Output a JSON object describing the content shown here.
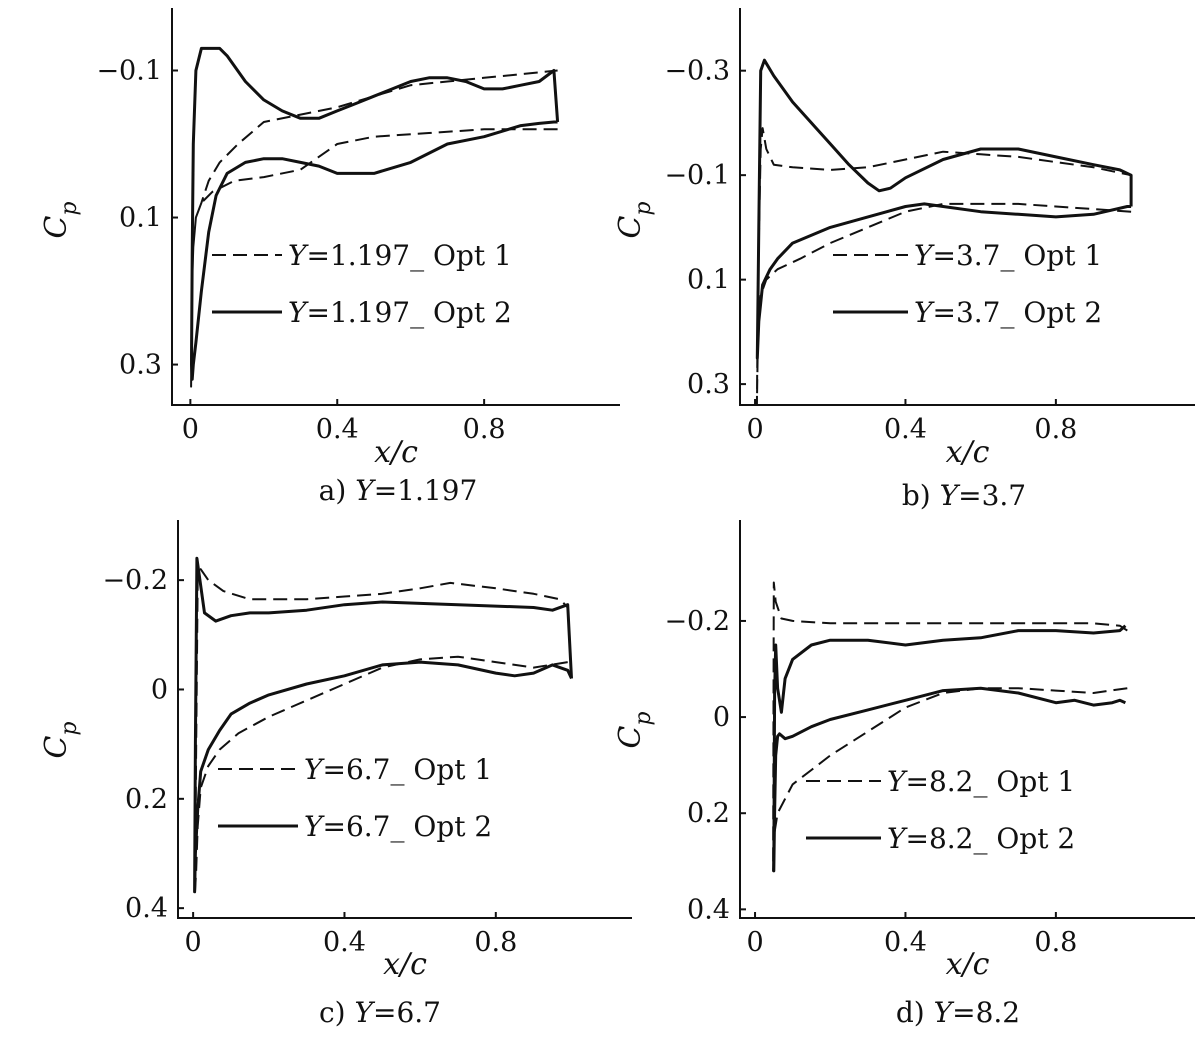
{
  "figure": {
    "legend_line_styles": [
      "dashed",
      "solid"
    ],
    "line_color": "#111111"
  },
  "chart_data": [
    {
      "type": "line",
      "caption": "a)  Y=1.197",
      "xlabel": "x/c",
      "ylabel": "Cp",
      "xlim": [
        -0.05,
        1.17
      ],
      "ylim": [
        0.355,
        -0.185
      ],
      "y_inverted": true,
      "xticks": [
        0,
        0.4,
        0.8
      ],
      "xtick_labels": [
        "0",
        "0.4",
        "0.8"
      ],
      "yticks": [
        -0.1,
        0.1,
        0.3
      ],
      "ytick_labels": [
        "−0.1",
        "0.1",
        "0.3"
      ],
      "legend_position": "center",
      "grid": false,
      "series": [
        {
          "name": "Y=1.197_ Opt 1",
          "style": "dashed",
          "x": [
            1.0,
            0.9,
            0.8,
            0.65,
            0.5,
            0.4,
            0.3,
            0.2,
            0.12,
            0.06,
            0.03,
            0.015,
            0.008,
            0.004,
            0.002,
            0.004,
            0.008,
            0.015,
            0.03,
            0.05,
            0.08,
            0.13,
            0.2,
            0.3,
            0.4,
            0.5,
            0.6,
            0.7,
            0.8,
            0.9,
            1.0
          ],
          "y": [
            -0.02,
            -0.02,
            -0.02,
            -0.015,
            -0.01,
            0.0,
            0.035,
            0.045,
            0.05,
            0.065,
            0.08,
            0.1,
            0.14,
            0.2,
            0.33,
            0.2,
            0.14,
            0.1,
            0.08,
            0.05,
            0.025,
            0.0,
            -0.03,
            -0.04,
            -0.05,
            -0.065,
            -0.08,
            -0.085,
            -0.09,
            -0.095,
            -0.1
          ]
        },
        {
          "name": "Y=1.197_ Opt 2",
          "style": "solid",
          "x": [
            1.0,
            0.99,
            0.95,
            0.9,
            0.8,
            0.7,
            0.6,
            0.5,
            0.4,
            0.35,
            0.3,
            0.25,
            0.2,
            0.15,
            0.1,
            0.07,
            0.05,
            0.03,
            0.015,
            0.008,
            0.005,
            0.003,
            0.005,
            0.008,
            0.015,
            0.03,
            0.06,
            0.08,
            0.1,
            0.15,
            0.2,
            0.25,
            0.3,
            0.35,
            0.4,
            0.45,
            0.5,
            0.55,
            0.6,
            0.65,
            0.7,
            0.75,
            0.8,
            0.85,
            0.9,
            0.95,
            0.99,
            1.0
          ],
          "y": [
            -0.03,
            -0.03,
            -0.028,
            -0.025,
            -0.01,
            0.0,
            0.025,
            0.04,
            0.04,
            0.03,
            0.025,
            0.02,
            0.02,
            0.025,
            0.04,
            0.07,
            0.12,
            0.2,
            0.27,
            0.3,
            0.32,
            0.3,
            0.15,
            0.0,
            -0.1,
            -0.13,
            -0.13,
            -0.13,
            -0.12,
            -0.085,
            -0.06,
            -0.045,
            -0.035,
            -0.035,
            -0.045,
            -0.055,
            -0.065,
            -0.075,
            -0.085,
            -0.09,
            -0.09,
            -0.085,
            -0.075,
            -0.075,
            -0.08,
            -0.085,
            -0.1,
            -0.03
          ]
        }
      ]
    },
    {
      "type": "line",
      "caption": "b)  Y=3.7",
      "xlabel": "x/c",
      "ylabel": "Cp",
      "xlim": [
        -0.04,
        1.17
      ],
      "ylim": [
        0.34,
        -0.42
      ],
      "y_inverted": true,
      "xticks": [
        0,
        0.4,
        0.8
      ],
      "xtick_labels": [
        "0",
        "0.4",
        "0.8"
      ],
      "yticks": [
        -0.3,
        -0.1,
        0.1,
        0.3
      ],
      "ytick_labels": [
        "−0.3",
        "−0.1",
        "0.1",
        "0.3"
      ],
      "legend_position": "center",
      "grid": false,
      "series": [
        {
          "name": "Y=3.7_ Opt 1",
          "style": "dashed",
          "x": [
            1.0,
            0.9,
            0.8,
            0.7,
            0.6,
            0.5,
            0.4,
            0.3,
            0.2,
            0.12,
            0.06,
            0.03,
            0.015,
            0.008,
            0.005,
            0.008,
            0.015,
            0.02,
            0.03,
            0.05,
            0.1,
            0.2,
            0.3,
            0.4,
            0.5,
            0.6,
            0.7,
            0.8,
            0.9,
            1.0
          ],
          "y": [
            -0.03,
            -0.035,
            -0.04,
            -0.045,
            -0.045,
            -0.045,
            -0.03,
            -0.0,
            0.03,
            0.06,
            0.08,
            0.1,
            0.13,
            0.2,
            0.34,
            0.1,
            -0.15,
            -0.19,
            -0.15,
            -0.12,
            -0.115,
            -0.11,
            -0.115,
            -0.13,
            -0.145,
            -0.14,
            -0.135,
            -0.125,
            -0.115,
            -0.1
          ]
        },
        {
          "name": "Y=3.7_ Opt 2",
          "style": "solid",
          "x": [
            1.0,
            0.99,
            0.9,
            0.8,
            0.7,
            0.6,
            0.5,
            0.45,
            0.4,
            0.3,
            0.2,
            0.1,
            0.06,
            0.04,
            0.02,
            0.01,
            0.006,
            0.01,
            0.015,
            0.025,
            0.05,
            0.1,
            0.15,
            0.2,
            0.25,
            0.3,
            0.33,
            0.36,
            0.4,
            0.5,
            0.6,
            0.7,
            0.8,
            0.9,
            0.97,
            1.0,
            1.0
          ],
          "y": [
            -0.04,
            -0.04,
            -0.025,
            -0.02,
            -0.025,
            -0.03,
            -0.04,
            -0.045,
            -0.04,
            -0.02,
            0.0,
            0.03,
            0.06,
            0.08,
            0.11,
            0.18,
            0.25,
            0.0,
            -0.3,
            -0.32,
            -0.29,
            -0.24,
            -0.2,
            -0.16,
            -0.12,
            -0.085,
            -0.07,
            -0.075,
            -0.095,
            -0.13,
            -0.15,
            -0.15,
            -0.135,
            -0.12,
            -0.11,
            -0.1,
            -0.04
          ]
        }
      ]
    },
    {
      "type": "line",
      "caption": "c)  Y=6.7",
      "xlabel": "x/c",
      "ylabel": "Cp",
      "xlim": [
        -0.04,
        1.16
      ],
      "ylim": [
        0.418,
        -0.31
      ],
      "y_inverted": true,
      "xticks": [
        0,
        0.4,
        0.8
      ],
      "xtick_labels": [
        "0",
        "0.4",
        "0.8"
      ],
      "yticks": [
        -0.2,
        0,
        0.2,
        0.4
      ],
      "ytick_labels": [
        "−0.2",
        "0",
        "0.2",
        "0.4"
      ],
      "legend_position": "center",
      "grid": false,
      "series": [
        {
          "name": "Y=6.7_ Opt 1",
          "style": "dashed",
          "x": [
            0.99,
            0.9,
            0.8,
            0.7,
            0.6,
            0.5,
            0.4,
            0.3,
            0.2,
            0.12,
            0.07,
            0.04,
            0.02,
            0.012,
            0.008,
            0.005,
            0.008,
            0.012,
            0.02,
            0.04,
            0.08,
            0.15,
            0.3,
            0.4,
            0.5,
            0.6,
            0.68,
            0.8,
            0.9,
            0.97,
            0.99
          ],
          "y": [
            -0.05,
            -0.04,
            -0.05,
            -0.06,
            -0.055,
            -0.04,
            -0.01,
            0.02,
            0.05,
            0.08,
            0.11,
            0.14,
            0.18,
            0.25,
            0.33,
            0.37,
            0.1,
            -0.2,
            -0.22,
            -0.2,
            -0.18,
            -0.165,
            -0.165,
            -0.17,
            -0.175,
            -0.185,
            -0.195,
            -0.185,
            -0.175,
            -0.165,
            -0.15
          ]
        },
        {
          "name": "Y=6.7_ Opt 2",
          "style": "solid",
          "x": [
            1.0,
            0.99,
            0.95,
            0.9,
            0.85,
            0.8,
            0.7,
            0.6,
            0.5,
            0.4,
            0.3,
            0.2,
            0.15,
            0.1,
            0.07,
            0.04,
            0.02,
            0.012,
            0.006,
            0.004,
            0.006,
            0.01,
            0.03,
            0.06,
            0.1,
            0.15,
            0.2,
            0.3,
            0.4,
            0.5,
            0.7,
            0.9,
            0.95,
            0.99,
            1.0
          ],
          "y": [
            -0.02,
            -0.035,
            -0.045,
            -0.03,
            -0.025,
            -0.03,
            -0.045,
            -0.05,
            -0.045,
            -0.025,
            -0.01,
            0.01,
            0.025,
            0.045,
            0.075,
            0.11,
            0.15,
            0.22,
            0.3,
            0.37,
            0.1,
            -0.24,
            -0.14,
            -0.125,
            -0.135,
            -0.14,
            -0.14,
            -0.145,
            -0.155,
            -0.16,
            -0.155,
            -0.15,
            -0.145,
            -0.155,
            -0.02
          ]
        }
      ]
    },
    {
      "type": "line",
      "caption": "d)  Y=8.2",
      "xlabel": "x/c",
      "ylabel": "Cp",
      "xlim": [
        -0.04,
        1.17
      ],
      "ylim": [
        0.418,
        -0.41
      ],
      "y_inverted": true,
      "xticks": [
        0,
        0.4,
        0.8
      ],
      "xtick_labels": [
        "0",
        "0.4",
        "0.8"
      ],
      "yticks": [
        -0.2,
        0,
        0.2,
        0.4
      ],
      "ytick_labels": [
        "−0.2",
        "0",
        "0.2",
        "0.4"
      ],
      "legend_position": "center",
      "grid": false,
      "series": [
        {
          "name": "Y=8.2_ Opt 1",
          "style": "dashed",
          "x": [
            0.99,
            0.9,
            0.8,
            0.7,
            0.6,
            0.5,
            0.4,
            0.3,
            0.2,
            0.15,
            0.1,
            0.08,
            0.06,
            0.05,
            0.048,
            0.05,
            0.055,
            0.07,
            0.1,
            0.2,
            0.4,
            0.6,
            0.8,
            0.9,
            0.97,
            0.99
          ],
          "y": [
            -0.06,
            -0.05,
            -0.055,
            -0.06,
            -0.06,
            -0.05,
            -0.02,
            0.03,
            0.08,
            0.11,
            0.14,
            0.17,
            0.2,
            0.25,
            0.32,
            -0.28,
            -0.24,
            -0.205,
            -0.2,
            -0.195,
            -0.195,
            -0.195,
            -0.195,
            -0.195,
            -0.19,
            -0.18
          ]
        },
        {
          "name": "Y=8.2_ Opt 2",
          "style": "solid",
          "x": [
            0.985,
            0.97,
            0.95,
            0.9,
            0.85,
            0.8,
            0.7,
            0.6,
            0.5,
            0.4,
            0.3,
            0.2,
            0.15,
            0.1,
            0.08,
            0.065,
            0.06,
            0.055,
            0.052,
            0.05,
            0.052,
            0.055,
            0.06,
            0.07,
            0.08,
            0.1,
            0.15,
            0.2,
            0.3,
            0.4,
            0.5,
            0.6,
            0.7,
            0.8,
            0.9,
            0.97,
            0.985
          ],
          "y": [
            -0.03,
            -0.035,
            -0.03,
            -0.025,
            -0.035,
            -0.03,
            -0.05,
            -0.06,
            -0.055,
            -0.035,
            -0.015,
            0.005,
            0.02,
            0.04,
            0.045,
            0.035,
            0.04,
            0.08,
            0.2,
            0.32,
            -0.05,
            -0.15,
            -0.06,
            -0.01,
            -0.08,
            -0.12,
            -0.15,
            -0.16,
            -0.16,
            -0.15,
            -0.16,
            -0.165,
            -0.18,
            -0.18,
            -0.175,
            -0.18,
            -0.19
          ]
        }
      ]
    }
  ]
}
